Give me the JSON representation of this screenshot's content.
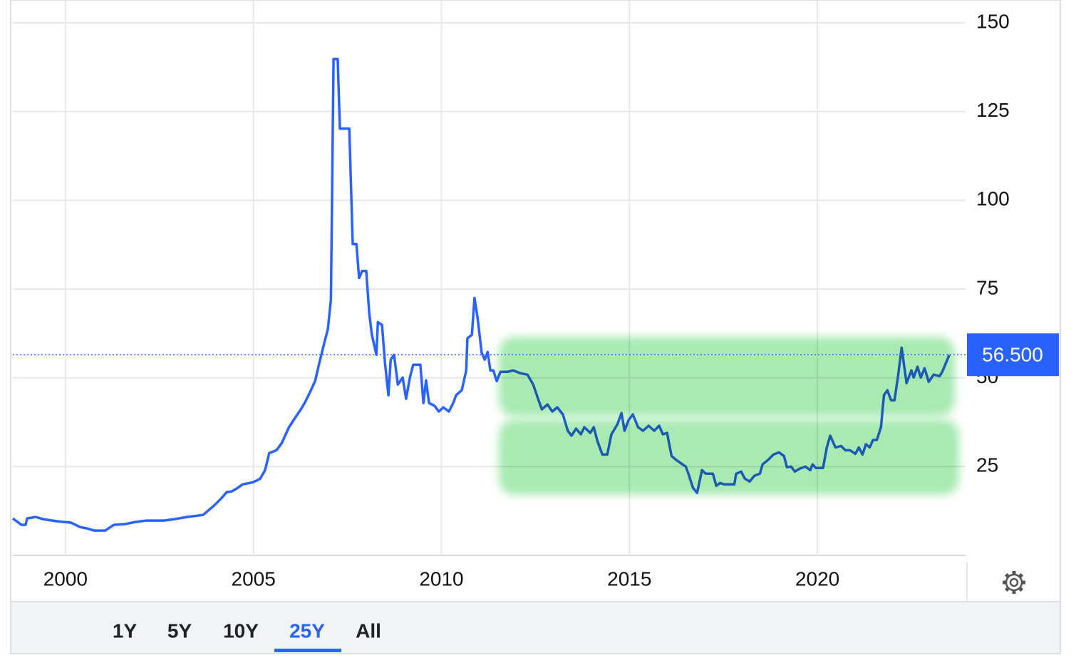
{
  "chart_data": {
    "type": "line",
    "x": [
      1998.6,
      1998.83,
      1998.94,
      1998.98,
      1999.21,
      1999.4,
      1999.78,
      2000.15,
      2000.38,
      2000.57,
      2000.76,
      2001.06,
      2001.29,
      2001.58,
      2001.86,
      2002.15,
      2002.62,
      2002.9,
      2003.23,
      2003.66,
      2003.95,
      2004.14,
      2004.29,
      2004.42,
      2004.55,
      2004.71,
      2004.99,
      2005.18,
      2005.31,
      2005.42,
      2005.61,
      2005.75,
      2005.94,
      2006.13,
      2006.26,
      2006.37,
      2006.51,
      2006.64,
      2006.75,
      2006.89,
      2006.98,
      2007.06,
      2007.13,
      2007.24,
      2007.3,
      2007.55,
      2007.64,
      2007.74,
      2007.81,
      2007.89,
      2008.0,
      2008.08,
      2008.15,
      2008.27,
      2008.31,
      2008.42,
      2008.5,
      2008.59,
      2008.65,
      2008.74,
      2008.84,
      2008.97,
      2009.06,
      2009.16,
      2009.25,
      2009.44,
      2009.52,
      2009.59,
      2009.67,
      2009.82,
      2009.93,
      2010.05,
      2010.2,
      2010.32,
      2010.39,
      2010.54,
      2010.66,
      2010.69,
      2010.81,
      2010.88,
      2010.96,
      2011.07,
      2011.15,
      2011.23,
      2011.3,
      2011.38,
      2011.47,
      2011.57,
      2011.76,
      2011.91,
      2012.1,
      2012.29,
      2012.44,
      2012.57,
      2012.67,
      2012.82,
      2012.95,
      2013.08,
      2013.23,
      2013.36,
      2013.46,
      2013.58,
      2013.71,
      2013.8,
      2013.96,
      2014.05,
      2014.15,
      2014.28,
      2014.41,
      2014.52,
      2014.68,
      2014.79,
      2014.87,
      2014.98,
      2015.09,
      2015.23,
      2015.36,
      2015.51,
      2015.66,
      2015.79,
      2015.89,
      2016.0,
      2016.12,
      2016.23,
      2016.36,
      2016.5,
      2016.57,
      2016.69,
      2016.8,
      2016.93,
      2017.03,
      2017.22,
      2017.31,
      2017.41,
      2017.52,
      2017.79,
      2017.84,
      2017.97,
      2018.07,
      2018.2,
      2018.32,
      2018.47,
      2018.54,
      2018.7,
      2018.83,
      2018.98,
      2019.11,
      2019.19,
      2019.3,
      2019.4,
      2019.53,
      2019.68,
      2019.81,
      2019.87,
      2019.96,
      2020.15,
      2020.25,
      2020.34,
      2020.48,
      2020.63,
      2020.74,
      2020.87,
      2021.01,
      2021.1,
      2021.2,
      2021.29,
      2021.39,
      2021.48,
      2021.58,
      2021.69,
      2021.77,
      2021.86,
      2021.96,
      2022.05,
      2022.14,
      2022.24,
      2022.37,
      2022.5,
      2022.56,
      2022.66,
      2022.75,
      2022.85,
      2022.96,
      2023.09,
      2023.25,
      2023.32,
      2023.43,
      2023.51
    ],
    "series": [
      {
        "color": "#2962ff",
        "values": [
          10.4,
          8.6,
          8.6,
          10.4,
          10.8,
          10.2,
          9.6,
          9.2,
          8.0,
          7.6,
          7.0,
          7.0,
          8.6,
          8.8,
          9.4,
          9.8,
          9.8,
          10.2,
          10.8,
          11.4,
          14.0,
          16.0,
          17.8,
          18.0,
          18.8,
          20.0,
          20.6,
          21.6,
          24.0,
          28.8,
          29.6,
          31.6,
          36.0,
          39.1,
          41.1,
          43.1,
          46.1,
          49.1,
          54.1,
          60.1,
          63.7,
          72.1,
          139.8,
          139.8,
          120.2,
          120.2,
          87.7,
          87.7,
          78.1,
          80.1,
          80.1,
          68.1,
          62.1,
          56.5,
          65.7,
          64.9,
          54.1,
          45.1,
          55.1,
          56.5,
          48.1,
          50.1,
          44.1,
          50.1,
          53.7,
          53.7,
          42.9,
          49.3,
          42.9,
          42.1,
          40.5,
          41.7,
          40.5,
          43.1,
          45.1,
          46.5,
          52.1,
          61.1,
          62.1,
          72.5,
          67.1,
          57.1,
          55.1,
          57.3,
          52.1,
          52.1,
          49.1,
          51.7,
          51.7,
          52.1,
          51.3,
          50.9,
          48.1,
          44.1,
          41.1,
          42.5,
          40.5,
          41.7,
          39.7,
          35.1,
          33.7,
          35.7,
          34.1,
          36.1,
          34.5,
          36.1,
          32.1,
          28.4,
          28.4,
          34.1,
          36.9,
          40.1,
          35.1,
          38.1,
          39.7,
          36.1,
          35.1,
          36.5,
          35.1,
          36.5,
          34.1,
          34.5,
          28.0,
          27.0,
          26.0,
          25.0,
          23.0,
          19.0,
          17.6,
          24.0,
          23.0,
          23.0,
          19.6,
          20.4,
          20.0,
          20.0,
          23.0,
          23.6,
          21.6,
          20.8,
          22.4,
          23.0,
          25.6,
          27.0,
          28.4,
          29.0,
          28.0,
          24.8,
          25.0,
          23.6,
          24.4,
          25.0,
          24.0,
          25.6,
          24.6,
          24.6,
          30.4,
          33.7,
          30.4,
          30.8,
          29.6,
          29.6,
          28.6,
          30.4,
          28.4,
          31.3,
          30.4,
          32.5,
          32.5,
          36.1,
          45.1,
          46.5,
          43.7,
          43.7,
          50.1,
          58.5,
          48.5,
          52.1,
          50.1,
          53.1,
          50.1,
          52.7,
          48.9,
          50.9,
          50.5,
          51.7,
          54.5,
          56.5
        ]
      }
    ],
    "xlim": [
      1998.6,
      2023.94
    ],
    "xticks": [
      2000,
      2005,
      2010,
      2015,
      2020
    ],
    "ylim": [
      0,
      150
    ],
    "yticks": [
      25,
      50,
      75,
      100,
      125,
      150
    ],
    "grid": true,
    "current_value": {
      "value": 56.5,
      "label": "56.500"
    },
    "range_buttons": [
      "1Y",
      "5Y",
      "10Y",
      "25Y",
      "All"
    ],
    "active_range_index": 3
  }
}
